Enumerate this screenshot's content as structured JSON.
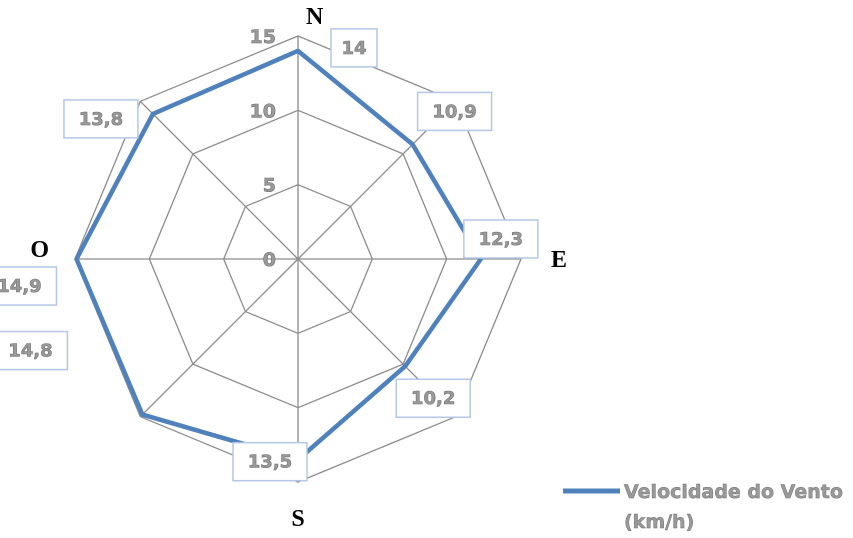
{
  "chart_data": {
    "type": "radar",
    "categories": [
      "N",
      "",
      "E",
      "",
      "S",
      "",
      "O",
      ""
    ],
    "series": [
      {
        "name": "Velocidade do Vento (km/h)",
        "values": [
          14,
          10.9,
          12.3,
          10.2,
          13.5,
          14.8,
          14.9,
          13.8
        ],
        "labels": [
          "14",
          "10,9",
          "12,3",
          "10,2",
          "13,5",
          "14,8",
          "14,9",
          "13,8"
        ],
        "color": "#4f81bd"
      }
    ],
    "ticks": [
      "0",
      "5",
      "10",
      "15"
    ],
    "tick_values": [
      0,
      5,
      10,
      15
    ],
    "rlim": [
      0,
      15
    ],
    "grid": true,
    "legend": {
      "position": "bottom-right",
      "lines": [
        "Velocidade do Vento",
        "(km/h)"
      ]
    },
    "colors": {
      "grid": "#8c8c8c",
      "series": "#4f81bd",
      "label_border": "#b4c7e7"
    }
  }
}
